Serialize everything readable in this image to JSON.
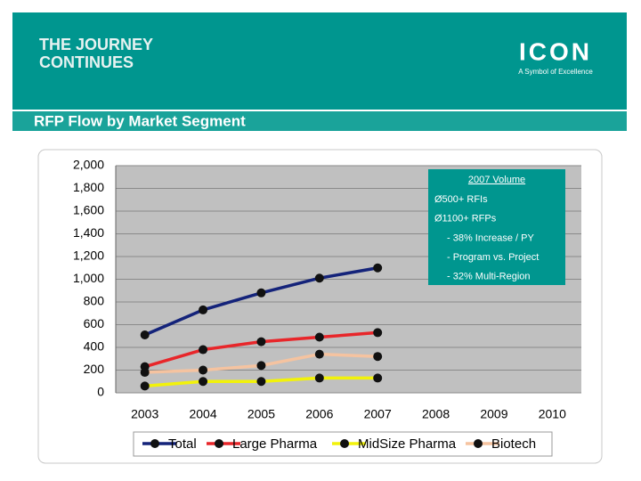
{
  "header": {
    "tagline": [
      "THE JOURNEY",
      "CONTINUES"
    ],
    "logo": "ICON",
    "logo_subtitle": "A Symbol of Excellence",
    "slide_title": "RFP Flow by Market Segment"
  },
  "chart_data": {
    "type": "line",
    "categories": [
      "2003",
      "2004",
      "2005",
      "2006",
      "2007",
      "2008",
      "2009",
      "2010"
    ],
    "series": [
      {
        "name": "Total",
        "color": "#14237a",
        "values": [
          510,
          730,
          880,
          1010,
          1100,
          null,
          null,
          null
        ]
      },
      {
        "name": "Large Pharma",
        "color": "#e8262a",
        "values": [
          230,
          380,
          450,
          490,
          530,
          null,
          null,
          null
        ]
      },
      {
        "name": "MidSize Pharma",
        "color": "#f2f20a",
        "values": [
          60,
          100,
          100,
          130,
          130,
          null,
          null,
          null
        ]
      },
      {
        "name": "Biotech",
        "color": "#f5c3a0",
        "values": [
          180,
          200,
          240,
          340,
          320,
          null,
          null,
          null
        ]
      }
    ],
    "ylim": [
      0,
      2000
    ],
    "yticks": [
      0,
      200,
      400,
      600,
      800,
      {
        "value": 1000,
        "label": "1,000"
      },
      {
        "value": 1200,
        "label": "1,200"
      },
      {
        "value": 1400,
        "label": "1,400"
      },
      {
        "value": 1600,
        "label": "1,600"
      },
      {
        "value": 1800,
        "label": "1,800"
      },
      {
        "value": 2000,
        "label": "2,000"
      }
    ],
    "grid": true,
    "legend": "bottom",
    "annotation": {
      "title": "2007 Volume",
      "lines": [
        "Ø500+ RFIs",
        "Ø1100+ RFPs",
        "- 38% Increase / PY",
        "- Program vs. Project",
        "- 32% Multi-Region"
      ]
    }
  }
}
